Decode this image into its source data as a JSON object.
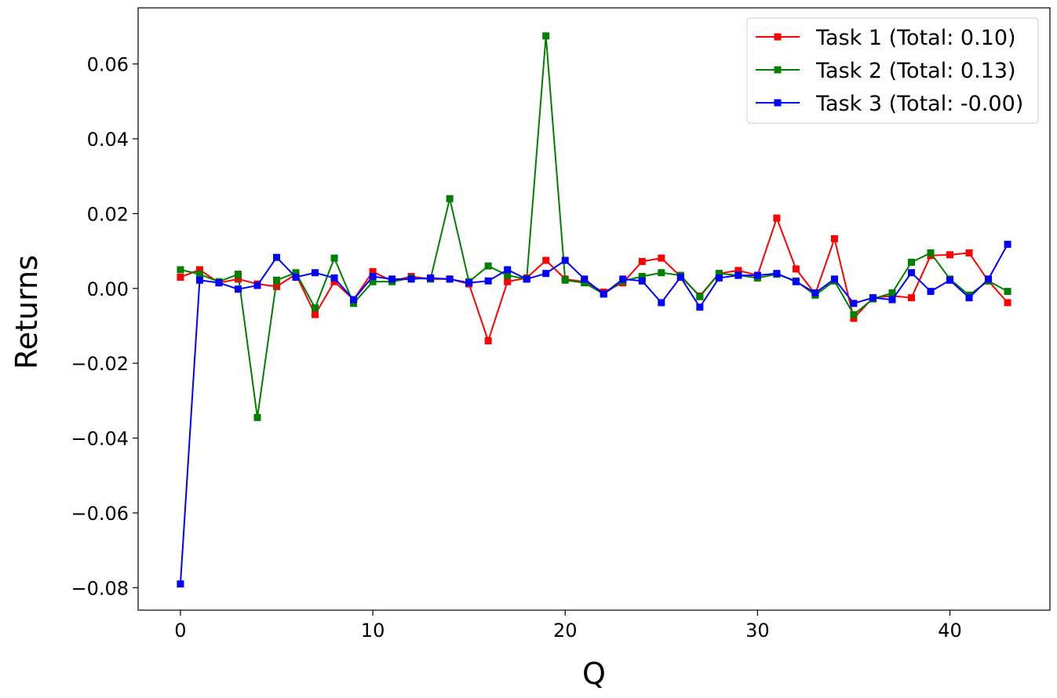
{
  "chart_data": {
    "type": "line",
    "xlabel": "Q",
    "ylabel": "Returns",
    "xlim": [
      -2.2,
      45.2
    ],
    "ylim": [
      -0.086,
      0.075
    ],
    "xticks": [
      0,
      10,
      20,
      30,
      40
    ],
    "yticks": [
      -0.08,
      -0.06,
      -0.04,
      -0.02,
      0.0,
      0.02,
      0.04,
      0.06
    ],
    "xtick_labels": [
      "0",
      "10",
      "20",
      "30",
      "40"
    ],
    "ytick_labels": [
      "−0.08",
      "−0.06",
      "−0.04",
      "−0.02",
      "0.00",
      "0.02",
      "0.04",
      "0.06"
    ],
    "grid": false,
    "legend_position": "top-right",
    "marker": "square",
    "x": [
      0,
      1,
      2,
      3,
      4,
      5,
      6,
      7,
      8,
      9,
      10,
      11,
      12,
      13,
      14,
      15,
      16,
      17,
      18,
      19,
      20,
      21,
      22,
      23,
      24,
      25,
      26,
      27,
      28,
      29,
      30,
      31,
      32,
      33,
      34,
      35,
      36,
      37,
      38,
      39,
      40,
      41,
      42,
      43
    ],
    "series": [
      {
        "name": "Task 1 (Total: 0.10)",
        "color": "#ff0000",
        "values": [
          0.003,
          0.005,
          0.0015,
          0.0025,
          0.0012,
          0.0005,
          0.0038,
          -0.007,
          0.0018,
          -0.003,
          0.0045,
          0.002,
          0.0032,
          0.0025,
          0.0025,
          0.0012,
          -0.014,
          0.0018,
          0.0028,
          0.0075,
          0.0025,
          0.0018,
          -0.001,
          0.0015,
          0.0072,
          0.0081,
          0.0032,
          -0.002,
          0.004,
          0.0048,
          0.0035,
          0.0188,
          0.0052,
          -0.0015,
          0.0133,
          -0.008,
          -0.0025,
          -0.002,
          -0.0025,
          0.0088,
          0.009,
          0.0095,
          0.002,
          -0.0038
        ]
      },
      {
        "name": "Task 2 (Total: 0.13)",
        "color": "#008000",
        "values": [
          0.005,
          0.0038,
          0.0018,
          0.0038,
          -0.0345,
          0.0022,
          0.0042,
          -0.0052,
          0.0081,
          -0.004,
          0.0018,
          0.0018,
          0.0028,
          0.0025,
          0.024,
          0.0018,
          0.006,
          0.0035,
          0.0025,
          0.0675,
          0.0022,
          0.0015,
          -0.0015,
          0.002,
          0.0032,
          0.0042,
          0.0035,
          -0.0022,
          0.004,
          0.0035,
          0.0028,
          0.0038,
          0.002,
          -0.0018,
          0.002,
          -0.007,
          -0.0028,
          -0.0012,
          0.007,
          0.0095,
          0.0025,
          -0.0018,
          0.002,
          -0.0008
        ]
      },
      {
        "name": "Task 3 (Total: -0.00)",
        "color": "#0000ff",
        "values": [
          -0.079,
          0.0022,
          0.0015,
          -0.0002,
          0.0008,
          0.0083,
          0.003,
          0.0042,
          0.0028,
          -0.003,
          0.0032,
          0.0025,
          0.0025,
          0.0028,
          0.0025,
          0.0015,
          0.002,
          0.005,
          0.0025,
          0.004,
          0.0075,
          0.0025,
          -0.0015,
          0.0025,
          0.002,
          -0.0038,
          0.003,
          -0.005,
          0.0028,
          0.0035,
          0.0035,
          0.004,
          0.0018,
          -0.0012,
          0.0025,
          -0.004,
          -0.0025,
          -0.003,
          0.0042,
          -0.0008,
          0.0022,
          -0.0025,
          0.0025,
          0.0118
        ]
      }
    ]
  }
}
